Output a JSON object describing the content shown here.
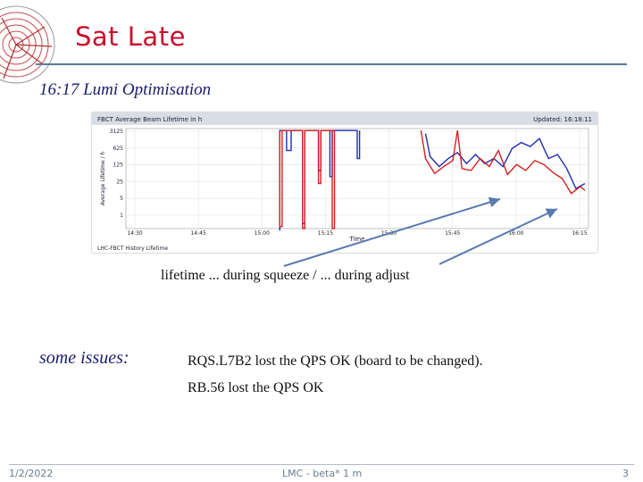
{
  "slide": {
    "title": "Sat Late",
    "subtitle_time": "16:17",
    "subtitle_text": "Lumi Optimisation",
    "caption": "lifetime ... during squeeze   /   ... during adjust",
    "issues_label": "some issues:",
    "issues": [
      "RQS.L7B2 lost the QPS OK (board to be changed).",
      "RB.56 lost the QPS OK"
    ]
  },
  "footer": {
    "date": "1/2/2022",
    "center": "LMC - beta* 1 m",
    "page": "3"
  },
  "chart_data": {
    "type": "line",
    "title": "FBCT Average Beam Lifetime in h",
    "updated": "Updated: 16:18:11",
    "xlabel": "Time",
    "ylabel": "Average Lifetime / h",
    "footer_label": "LHC-FBCT History Lifetime",
    "y_ticks": [
      "3125",
      "625",
      "125",
      "25",
      "5",
      "1"
    ],
    "x_ticks": [
      "14:30",
      "14:45",
      "15:00",
      "15:15",
      "15:30",
      "15:45",
      "16:00",
      "16:15"
    ],
    "x": [
      "14:30",
      "14:35",
      "14:40",
      "14:45",
      "14:50",
      "14:55",
      "15:00",
      "15:05",
      "15:10",
      "15:15",
      "15:20",
      "15:25",
      "15:30",
      "15:35",
      "15:40",
      "15:45",
      "15:50",
      "15:55",
      "16:00",
      "16:05",
      "16:10",
      "16:15",
      "16:18"
    ],
    "colors": {
      "blue": "#1f2fb0",
      "red": "#d42020"
    }
  }
}
